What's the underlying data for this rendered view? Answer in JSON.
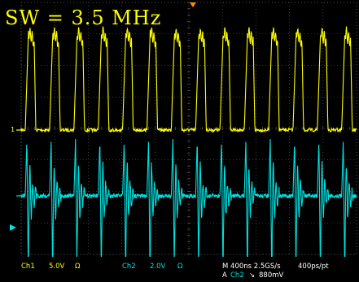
{
  "title": "SW = 3.5 MHz",
  "markers": {
    "ch1_level": "1"
  },
  "status": {
    "ch1": {
      "name": "Ch1",
      "scale": "5.0V",
      "coupling": "Ω"
    },
    "ch2": {
      "name": "Ch2",
      "scale": "2.0V",
      "coupling": "Ω"
    },
    "timebase": "M 400ns 2.5GS/s",
    "record": "400ps/pt",
    "trigger": {
      "mode": "A",
      "source": "Ch2",
      "slope": "↘",
      "level": "880mV"
    }
  },
  "colors": {
    "ch1": "#ffff00",
    "ch2": "#00e0e0",
    "grid": "#6a6a6a",
    "background": "#000000",
    "trigger_marker": "#ff8c00"
  }
}
